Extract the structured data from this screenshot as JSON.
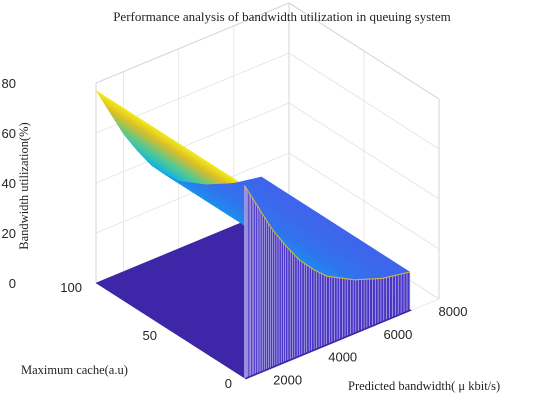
{
  "chart_data": {
    "type": "surface3d",
    "title": "Performance analysis of bandwidth utilization in queuing system",
    "xlabel": "Predicted bandwidth( μ kbit/s)",
    "ylabel": "Maximum cache(a.u)",
    "zlabel": "Bandwidth utilization(%)",
    "x_ticks": [
      "2000",
      "4000",
      "6000",
      "8000"
    ],
    "y_ticks": [
      "0",
      "50",
      "100"
    ],
    "z_ticks": [
      "0",
      "20",
      "40",
      "60",
      "80"
    ],
    "xlim": [
      1000,
      8000
    ],
    "ylim": [
      0,
      100
    ],
    "zlim": [
      0,
      80
    ],
    "grid": true,
    "colormap": "parula",
    "surface": {
      "bandwidth": [
        1000,
        1500,
        2000,
        2500,
        3000,
        3500,
        4000,
        4500,
        5000,
        5500,
        6000,
        6500,
        7000
      ],
      "cache_rows": [
        0,
        1,
        100
      ],
      "utilization_at_nonzero_cache": [
        77,
        66,
        55,
        46,
        38,
        32,
        27,
        24,
        21,
        19,
        17,
        16,
        15
      ],
      "utilization_at_zero_cache": 0
    }
  }
}
